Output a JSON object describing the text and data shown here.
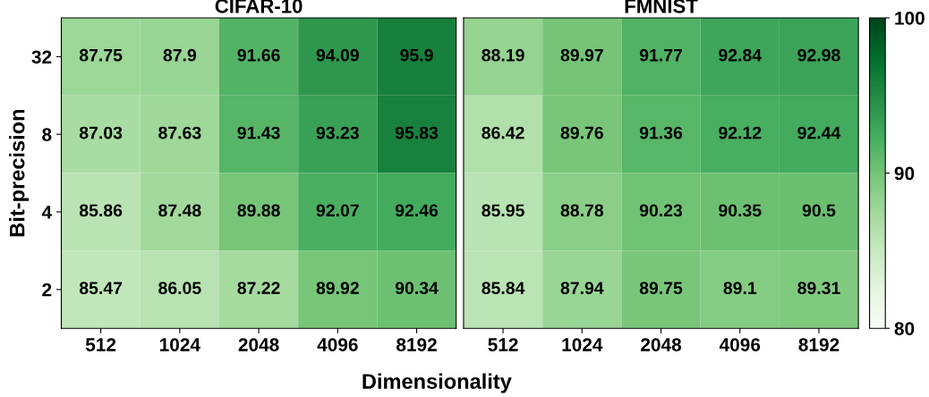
{
  "chart_data": [
    {
      "type": "heatmap",
      "title": "CIFAR-10",
      "xlabel": "Dimensionality",
      "ylabel": "Bit-precision",
      "categories": [
        "512",
        "1024",
        "2048",
        "4096",
        "8192"
      ],
      "y_categories": [
        "32",
        "8",
        "4",
        "2"
      ],
      "cells": [
        [
          87.75,
          87.9,
          91.66,
          94.09,
          95.9
        ],
        [
          87.03,
          87.63,
          91.43,
          93.23,
          95.83
        ],
        [
          85.86,
          87.48,
          89.88,
          92.07,
          92.46
        ],
        [
          85.47,
          86.05,
          87.22,
          89.92,
          90.34
        ]
      ],
      "data_labels": true
    },
    {
      "type": "heatmap",
      "title": "FMNIST",
      "categories": [
        "512",
        "1024",
        "2048",
        "4096",
        "8192"
      ],
      "y_categories": [
        "32",
        "8",
        "4",
        "2"
      ],
      "cells": [
        [
          88.19,
          89.97,
          91.77,
          92.84,
          92.98
        ],
        [
          86.42,
          89.76,
          91.36,
          92.12,
          92.44
        ],
        [
          85.95,
          88.78,
          90.23,
          90.35,
          90.5
        ],
        [
          85.84,
          87.94,
          89.75,
          89.1,
          89.31
        ]
      ],
      "clim": [
        80,
        100
      ],
      "cticks": [
        80,
        90,
        100
      ],
      "data_labels": true,
      "tick_labels": "x"
    }
  ]
}
